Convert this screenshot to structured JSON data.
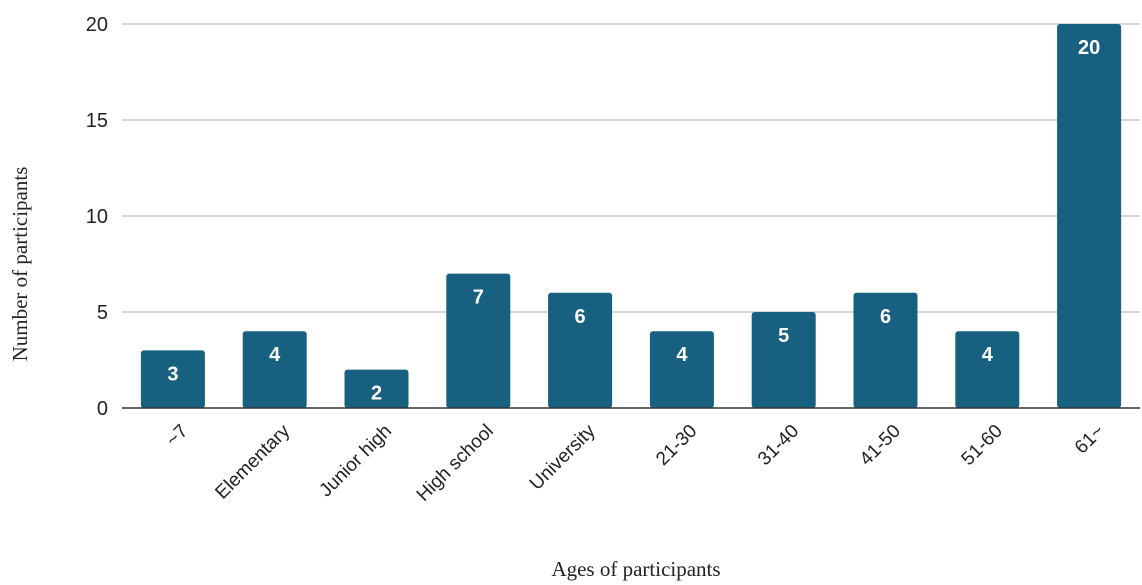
{
  "chart_data": {
    "type": "bar",
    "title": "",
    "xlabel": "Ages of participants",
    "ylabel": "Number of participants",
    "categories": [
      "~7",
      "Elementary",
      "Junior high",
      "High school",
      "University",
      "21-30",
      "31-40",
      "41-50",
      "51-60",
      "61~"
    ],
    "values": [
      3,
      4,
      2,
      7,
      6,
      4,
      5,
      6,
      4,
      20
    ],
    "ylim": [
      0,
      20
    ],
    "yticks": [
      0,
      5,
      10,
      15,
      20
    ],
    "grid": true,
    "data_labels": true,
    "bar_color": "#17607f",
    "grid_color": "#cccccc"
  }
}
